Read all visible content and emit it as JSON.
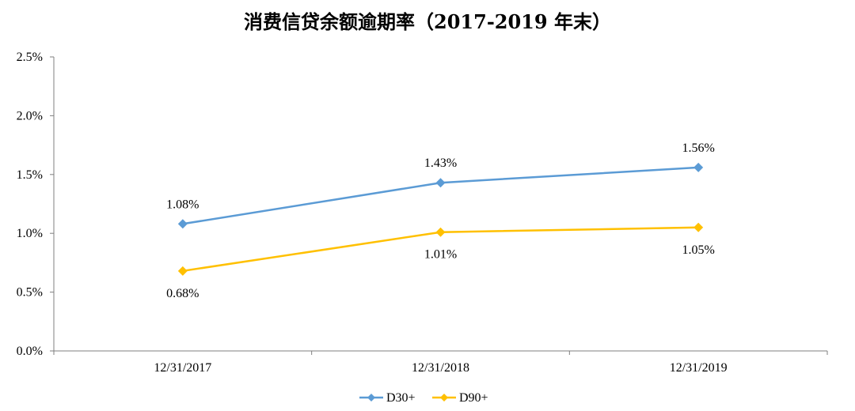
{
  "chart_data": {
    "type": "line",
    "title": "消费信贷余额逾期率（2017-2019 年末）",
    "xlabel": "",
    "ylabel": "",
    "categories": [
      "12/31/2017",
      "12/31/2018",
      "12/31/2019"
    ],
    "ylim": [
      0,
      2.5
    ],
    "yticks": [
      "0.0%",
      "0.5%",
      "1.0%",
      "1.5%",
      "2.0%",
      "2.5%"
    ],
    "grid": false,
    "legend_position": "bottom",
    "series": [
      {
        "name": "D30+",
        "color": "#5b9bd5",
        "values": [
          1.08,
          1.43,
          1.56
        ],
        "labels": [
          "1.08%",
          "1.43%",
          "1.56%"
        ],
        "label_position": "above"
      },
      {
        "name": "D90+",
        "color": "#ffc000",
        "values": [
          0.68,
          1.01,
          1.05
        ],
        "labels": [
          "0.68%",
          "1.01%",
          "1.05%"
        ],
        "label_position": "below"
      }
    ]
  }
}
